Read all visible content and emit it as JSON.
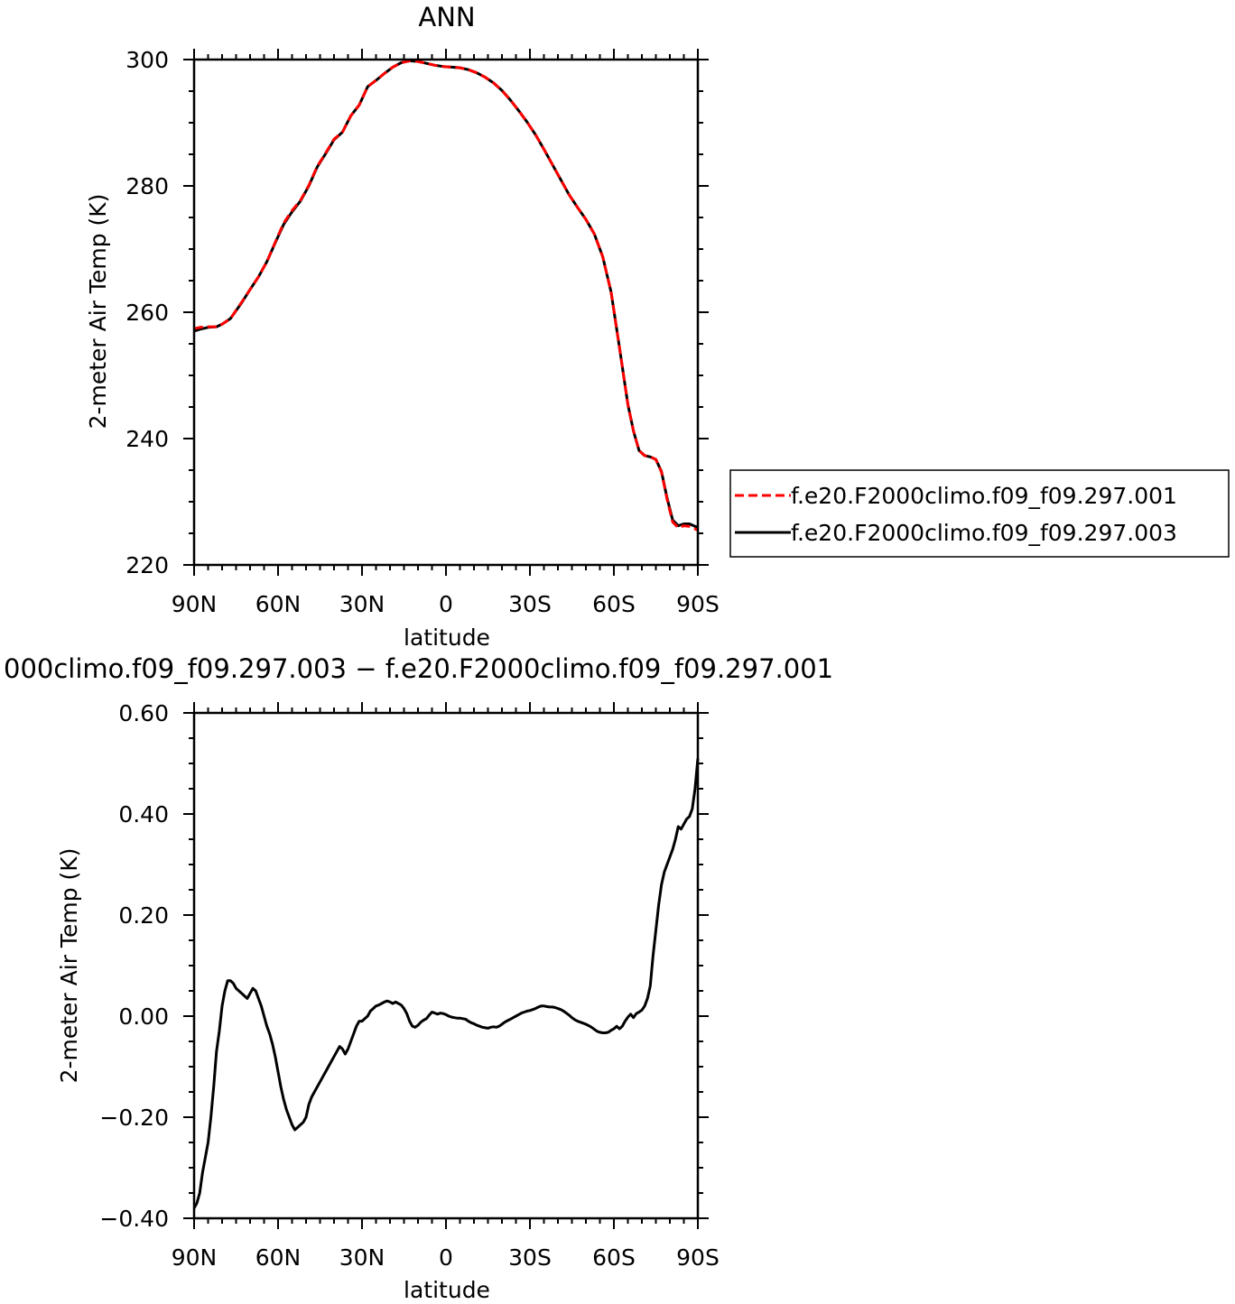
{
  "chart_data": [
    {
      "type": "line",
      "title": "ANN",
      "xlabel": "latitude",
      "ylabel": "2-meter Air Temp (K)",
      "xlim": [
        90,
        -90
      ],
      "ylim": [
        220,
        300
      ],
      "x_ticks": [
        90,
        60,
        30,
        0,
        -30,
        -60,
        -90
      ],
      "x_tick_labels": [
        "90N",
        "60N",
        "30N",
        "0",
        "30S",
        "60S",
        "90S"
      ],
      "y_ticks": [
        220,
        240,
        260,
        280,
        300
      ],
      "y_tick_labels": [
        "220",
        "240",
        "260",
        "280",
        "300"
      ],
      "grid": false,
      "legend": "right",
      "series": [
        {
          "name": "f.e20.F2000climo.f09_f09.297.001",
          "color": "#ff0000",
          "style": "dashed",
          "x": [
            90,
            88,
            85,
            82,
            80,
            77,
            73,
            70,
            67,
            64,
            61,
            58,
            55,
            52,
            49,
            46,
            43,
            40,
            37,
            34,
            31,
            28,
            25,
            22,
            19,
            16,
            13,
            10,
            7,
            4,
            1,
            -2,
            -5,
            -8,
            -11,
            -14,
            -17,
            -20,
            -23,
            -26,
            -29,
            -32,
            -35,
            -38,
            -41,
            -44,
            -47,
            -50,
            -53,
            -56,
            -59,
            -62,
            -65,
            -67,
            -69,
            -71,
            -73,
            -75,
            -77,
            -79,
            -81,
            -83,
            -85,
            -87,
            -89,
            -90
          ],
          "y": [
            257.4,
            257.6,
            257.7,
            257.7,
            258.1,
            259.0,
            261.6,
            263.6,
            265.6,
            268.0,
            271.1,
            274.1,
            276.1,
            277.7,
            280.1,
            283.1,
            285.2,
            287.4,
            288.5,
            291.1,
            292.8,
            295.7,
            296.7,
            297.8,
            298.8,
            299.5,
            299.8,
            299.7,
            299.4,
            299.1,
            298.9,
            298.8,
            298.7,
            298.4,
            297.9,
            297.2,
            296.3,
            295.1,
            293.6,
            291.9,
            290.1,
            288.1,
            285.8,
            283.4,
            281.0,
            278.6,
            276.6,
            274.7,
            272.4,
            268.8,
            263.2,
            254.4,
            245.4,
            241.2,
            238.1,
            237.3,
            237.1,
            236.7,
            234.7,
            230.4,
            226.8,
            225.9,
            226.2,
            226.1,
            225.7,
            225.5
          ]
        },
        {
          "name": "f.e20.F2000climo.f09_f09.297.003",
          "color": "#000000",
          "style": "solid",
          "x": [
            90,
            88,
            85,
            82,
            80,
            77,
            73,
            70,
            67,
            64,
            61,
            58,
            55,
            52,
            49,
            46,
            43,
            40,
            37,
            34,
            31,
            28,
            25,
            22,
            19,
            16,
            13,
            10,
            7,
            4,
            1,
            -2,
            -5,
            -8,
            -11,
            -14,
            -17,
            -20,
            -23,
            -26,
            -29,
            -32,
            -35,
            -38,
            -41,
            -44,
            -47,
            -50,
            -53,
            -56,
            -59,
            -62,
            -65,
            -67,
            -69,
            -71,
            -73,
            -75,
            -77,
            -79,
            -81,
            -83,
            -85,
            -87,
            -89,
            -90
          ],
          "y": [
            257.0,
            257.3,
            257.6,
            257.7,
            258.1,
            259.0,
            261.5,
            263.6,
            265.6,
            268.0,
            271.0,
            273.9,
            275.9,
            277.6,
            280.0,
            283.0,
            285.1,
            287.3,
            288.5,
            291.1,
            292.8,
            295.7,
            296.7,
            297.8,
            298.8,
            299.5,
            299.8,
            299.7,
            299.4,
            299.1,
            298.9,
            298.8,
            298.7,
            298.4,
            297.9,
            297.2,
            296.3,
            295.1,
            293.6,
            291.9,
            290.1,
            288.1,
            285.8,
            283.4,
            281.0,
            278.6,
            276.6,
            274.7,
            272.4,
            268.8,
            263.2,
            254.4,
            245.4,
            241.2,
            238.1,
            237.3,
            237.1,
            236.7,
            234.8,
            230.6,
            227.1,
            226.2,
            226.5,
            226.5,
            226.1,
            226.0
          ]
        }
      ]
    },
    {
      "type": "line",
      "title": "000climo.f09_f09.297.003 − f.e20.F2000climo.f09_f09.297.001",
      "xlabel": "latitude",
      "ylabel": "2-meter Air Temp (K)",
      "xlim": [
        90,
        -90
      ],
      "ylim": [
        -0.4,
        0.6
      ],
      "x_ticks": [
        90,
        60,
        30,
        0,
        -30,
        -60,
        -90
      ],
      "x_tick_labels": [
        "90N",
        "60N",
        "30N",
        "0",
        "30S",
        "60S",
        "90S"
      ],
      "y_ticks": [
        -0.4,
        -0.2,
        0.0,
        0.2,
        0.4,
        0.6
      ],
      "y_tick_labels": [
        "−0.40",
        "−0.20",
        "0.00",
        "0.20",
        "0.40",
        "0.60"
      ],
      "grid": false,
      "series": [
        {
          "color": "#000000",
          "style": "solid",
          "x": [
            90,
            89,
            88,
            87,
            86,
            85,
            84,
            83,
            82,
            81,
            80,
            79,
            78,
            77,
            76,
            75,
            74,
            73,
            72,
            71,
            70,
            69,
            68,
            67,
            66,
            65,
            64,
            63,
            62,
            61,
            60,
            59,
            58,
            57,
            56,
            55,
            54,
            53,
            52,
            51,
            50,
            49,
            48,
            47,
            46,
            45,
            44,
            43,
            42,
            41,
            40,
            39,
            38,
            37,
            36,
            35,
            34,
            33,
            32,
            31,
            30,
            29,
            28,
            27,
            26,
            25,
            24,
            23,
            22,
            21,
            20,
            19,
            18,
            17,
            16,
            15,
            14,
            13,
            12,
            11,
            10,
            9,
            8,
            7,
            6,
            5,
            4,
            3,
            2,
            1,
            0,
            -1,
            -2,
            -3,
            -4,
            -5,
            -6,
            -7,
            -8,
            -9,
            -10,
            -11,
            -12,
            -13,
            -14,
            -15,
            -16,
            -17,
            -18,
            -19,
            -20,
            -21,
            -22,
            -23,
            -24,
            -25,
            -26,
            -27,
            -28,
            -29,
            -30,
            -31,
            -32,
            -33,
            -34,
            -35,
            -36,
            -37,
            -38,
            -39,
            -40,
            -41,
            -42,
            -43,
            -44,
            -45,
            -46,
            -47,
            -48,
            -49,
            -50,
            -51,
            -52,
            -53,
            -54,
            -55,
            -56,
            -57,
            -58,
            -59,
            -60,
            -61,
            -62,
            -63,
            -64,
            -65,
            -66,
            -67,
            -68,
            -69,
            -70,
            -71,
            -72,
            -73,
            -74,
            -75,
            -76,
            -77,
            -78,
            -79,
            -80,
            -81,
            -82,
            -83,
            -84,
            -85,
            -86,
            -87,
            -88,
            -89,
            -90
          ],
          "y": [
            -0.38,
            -0.37,
            -0.35,
            -0.31,
            -0.28,
            -0.25,
            -0.2,
            -0.14,
            -0.07,
            -0.03,
            0.02,
            0.05,
            0.07,
            0.07,
            0.065,
            0.055,
            0.05,
            0.045,
            0.04,
            0.035,
            0.045,
            0.055,
            0.05,
            0.035,
            0.02,
            0.0,
            -0.02,
            -0.035,
            -0.055,
            -0.08,
            -0.11,
            -0.14,
            -0.165,
            -0.185,
            -0.2,
            -0.215,
            -0.225,
            -0.22,
            -0.215,
            -0.21,
            -0.2,
            -0.175,
            -0.16,
            -0.15,
            -0.14,
            -0.13,
            -0.12,
            -0.11,
            -0.1,
            -0.09,
            -0.08,
            -0.07,
            -0.06,
            -0.065,
            -0.075,
            -0.065,
            -0.05,
            -0.035,
            -0.02,
            -0.01,
            -0.01,
            -0.005,
            0.0,
            0.01,
            0.015,
            0.02,
            0.022,
            0.025,
            0.028,
            0.03,
            0.028,
            0.025,
            0.028,
            0.025,
            0.022,
            0.015,
            0.005,
            -0.01,
            -0.02,
            -0.022,
            -0.018,
            -0.012,
            -0.008,
            -0.005,
            0.002,
            0.008,
            0.006,
            0.004,
            0.006,
            0.005,
            0.003,
            0.0,
            -0.002,
            -0.003,
            -0.004,
            -0.004,
            -0.005,
            -0.006,
            -0.01,
            -0.013,
            -0.015,
            -0.018,
            -0.02,
            -0.022,
            -0.023,
            -0.024,
            -0.022,
            -0.021,
            -0.022,
            -0.02,
            -0.016,
            -0.012,
            -0.009,
            -0.006,
            -0.003,
            0.0,
            0.003,
            0.006,
            0.008,
            0.01,
            0.011,
            0.013,
            0.015,
            0.018,
            0.02,
            0.02,
            0.019,
            0.018,
            0.018,
            0.017,
            0.015,
            0.013,
            0.01,
            0.006,
            0.002,
            -0.003,
            -0.007,
            -0.01,
            -0.012,
            -0.014,
            -0.016,
            -0.019,
            -0.022,
            -0.026,
            -0.03,
            -0.032,
            -0.033,
            -0.033,
            -0.032,
            -0.028,
            -0.025,
            -0.02,
            -0.025,
            -0.02,
            -0.01,
            -0.002,
            0.004,
            -0.003,
            0.005,
            0.008,
            0.012,
            0.02,
            0.035,
            0.06,
            0.12,
            0.17,
            0.22,
            0.26,
            0.285,
            0.3,
            0.315,
            0.33,
            0.35,
            0.375,
            0.37,
            0.38,
            0.39,
            0.395,
            0.41,
            0.45,
            0.51
          ]
        }
      ]
    }
  ]
}
